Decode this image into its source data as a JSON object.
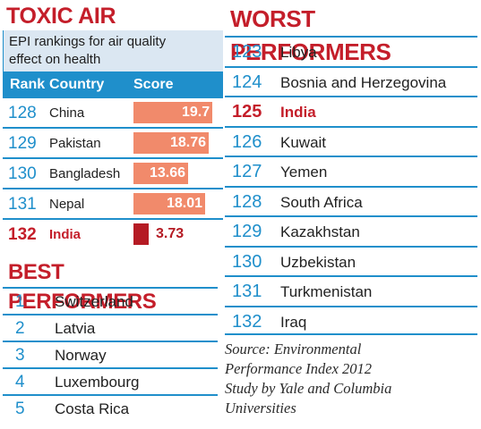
{
  "toxic_air": {
    "title": "TOXIC AIR",
    "subtitle_line1": "EPI rankings for air quality",
    "subtitle_line2": "effect on health",
    "col_rank": "Rank",
    "col_country": "Country",
    "col_score": "Score",
    "rows": [
      {
        "rank": "128",
        "country": "China",
        "score": "19.7",
        "score_value": 19.7
      },
      {
        "rank": "129",
        "country": "Pakistan",
        "score": "18.76",
        "score_value": 18.76
      },
      {
        "rank": "130",
        "country": "Bangladesh",
        "score": "13.66",
        "score_value": 13.66
      },
      {
        "rank": "131",
        "country": "Nepal",
        "score": "18.01",
        "score_value": 18.01
      },
      {
        "rank": "132",
        "country": "India",
        "score": "3.73",
        "score_value": 3.73,
        "highlight": true
      }
    ]
  },
  "best_performers": {
    "title": "BEST PERFORMERS",
    "rows": [
      {
        "rank": "1",
        "country": "Switzerland"
      },
      {
        "rank": "2",
        "country": "Latvia"
      },
      {
        "rank": "3",
        "country": "Norway"
      },
      {
        "rank": "4",
        "country": "Luxembourg"
      },
      {
        "rank": "5",
        "country": "Costa Rica"
      }
    ]
  },
  "worst_performers": {
    "title": "WORST PERFORMERS",
    "rows": [
      {
        "rank": "123",
        "country": "Libya"
      },
      {
        "rank": "124",
        "country": "Bosnia and Herzegovina"
      },
      {
        "rank": "125",
        "country": "India",
        "highlight": true
      },
      {
        "rank": "126",
        "country": "Kuwait"
      },
      {
        "rank": "127",
        "country": "Yemen"
      },
      {
        "rank": "128",
        "country": "South Africa"
      },
      {
        "rank": "129",
        "country": "Kazakhstan"
      },
      {
        "rank": "130",
        "country": "Uzbekistan"
      },
      {
        "rank": "131",
        "country": "Turkmenistan"
      },
      {
        "rank": "132",
        "country": "Iraq"
      }
    ]
  },
  "source": {
    "line1": "Source: Environmental",
    "line2": "Performance Index 2012",
    "line3": "Study by Yale and Columbia",
    "line4": "Universities"
  },
  "colors": {
    "title_red": "#c41e2a",
    "accent_blue": "#1f8fcb",
    "bar_salmon": "#f18a6b",
    "bar_highlight": "#b51b24"
  }
}
